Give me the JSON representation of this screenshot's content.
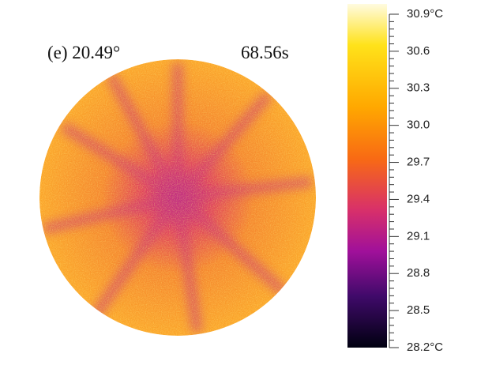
{
  "panel_label": "(e) 20.49°",
  "time": "68.56s",
  "colorbar": {
    "lim": [
      28.2,
      30.9
    ],
    "ticks": [
      {
        "value": 30.9,
        "label": "30.9°C"
      },
      30.6,
      30.3,
      {
        "value": 30,
        "label": "30.0"
      },
      29.7,
      29.4,
      29.1,
      28.8,
      28.5,
      {
        "value": 28.2,
        "label": "28.2°C"
      }
    ]
  }
}
